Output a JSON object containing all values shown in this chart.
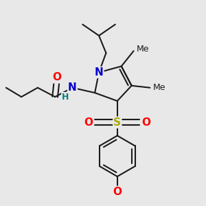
{
  "bg_color": "#e8e8e8",
  "bond_color": "#1a1a1a",
  "bond_width": 1.5,
  "atom_colors": {
    "O": "#ff0000",
    "N": "#0000cc",
    "S": "#aaaa00",
    "H": "#008080",
    "C": "#1a1a1a"
  },
  "font_size": 10,
  "fig_size": [
    3.0,
    3.0
  ],
  "dpi": 100
}
